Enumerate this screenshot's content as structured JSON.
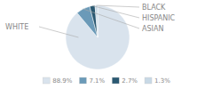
{
  "chart_data": {
    "type": "pie",
    "categories": [
      "WHITE",
      "ASIAN",
      "HISPANIC",
      "BLACK"
    ],
    "values": [
      88.9,
      7.1,
      2.7,
      1.3
    ],
    "value_labels": [
      "88.9%",
      "7.1%",
      "2.7%",
      "1.3%"
    ],
    "colors": [
      "#d9e3ed",
      "#6b9ab8",
      "#2b5972",
      "#c8d9e6"
    ],
    "legend": "bottom"
  }
}
